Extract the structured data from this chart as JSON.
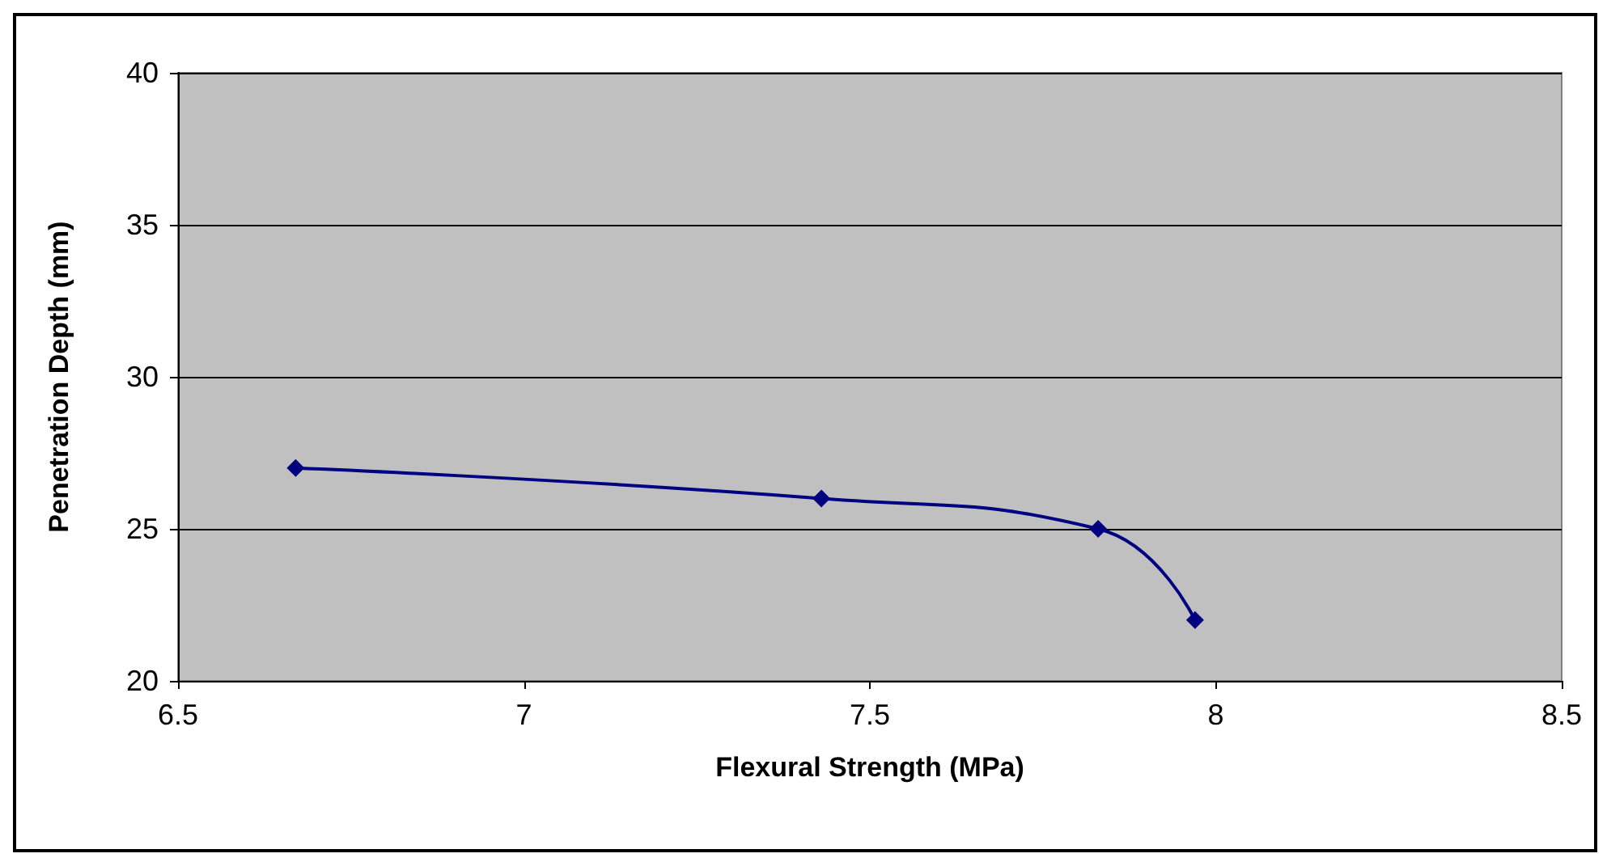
{
  "chart_data": {
    "type": "line",
    "xlabel": "Flexural Strength (MPa)",
    "ylabel": "Penetration Depth (mm)",
    "x": [
      6.67,
      7.43,
      7.83,
      7.97
    ],
    "series": [
      {
        "color": "#000080",
        "values": [
          27,
          26,
          25,
          22
        ]
      }
    ],
    "xlim": [
      6.5,
      8.5
    ],
    "xticks": [
      6.5,
      7,
      7.5,
      8,
      8.5
    ],
    "ylim": [
      20,
      40
    ],
    "yticks": [
      20,
      25,
      30,
      35,
      40
    ],
    "grid": "y",
    "marker": "diamond",
    "line_style": "solid"
  }
}
